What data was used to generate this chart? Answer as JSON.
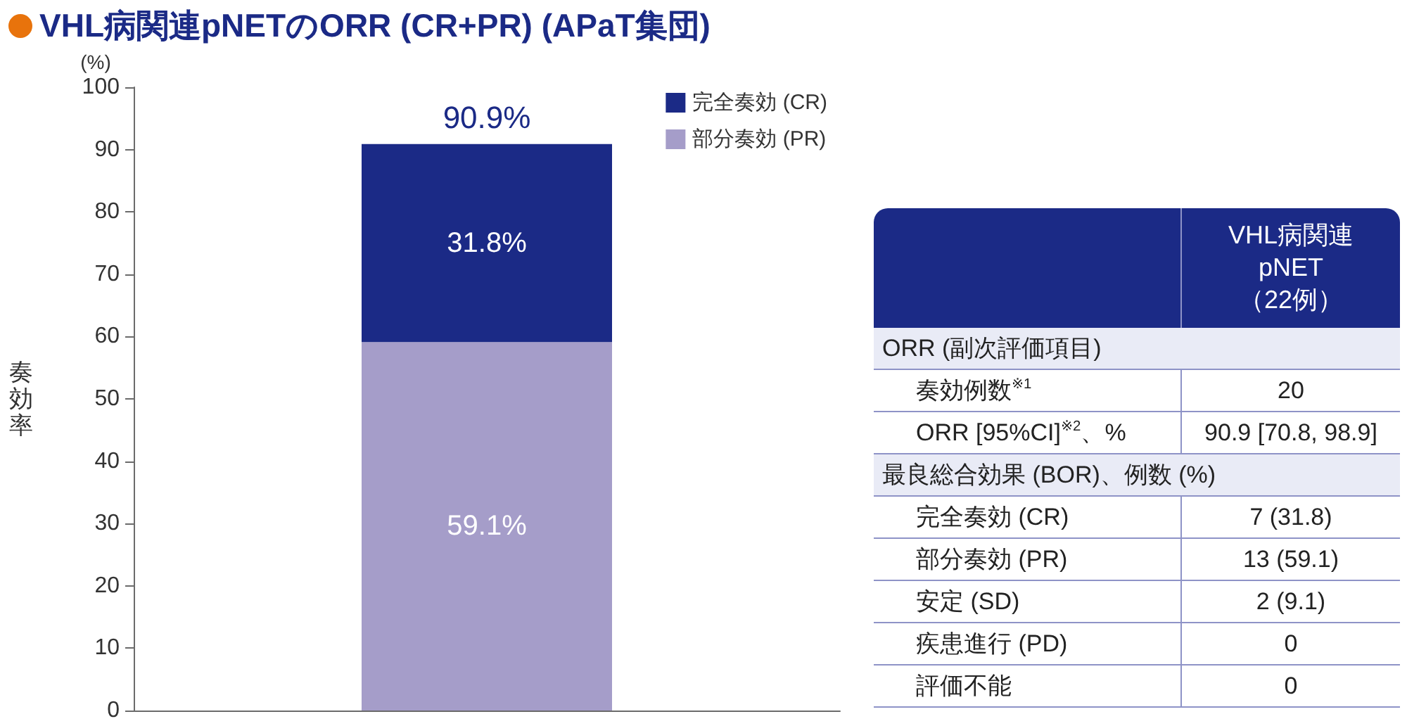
{
  "chart_data": [
    {
      "type": "bar",
      "title": "VHL病関連pNETのORR (CR+PR) (APaT集団)",
      "ylabel": "奏効率",
      "annotations": [
        "(%)"
      ],
      "categories": [
        null
      ],
      "stacked": true,
      "series": [
        {
          "name": "部分奏効 (PR)",
          "color": "#a59dc9",
          "values": [
            59.1
          ],
          "value_labels": [
            "59.1%"
          ]
        },
        {
          "name": "完全奏効 (CR)",
          "color": "#1b2a86",
          "values": [
            31.8
          ],
          "value_labels": [
            "31.8%"
          ]
        }
      ],
      "totals": [
        "90.9%"
      ],
      "ylim": [
        0,
        100
      ],
      "yticks": [
        0,
        10,
        20,
        30,
        40,
        50,
        60,
        70,
        80,
        90,
        100
      ],
      "legend": "top right"
    },
    {
      "type": "other",
      "categories": [
        "VHL病関連\npNET\n（22例）"
      ],
      "y_categories": [
        "ORR (副次評価項目)",
        "奏効例数$^{※1}$",
        "ORR [95%CI]$^{※2}$、%",
        "最良総合効果 (BOR)、例数 (%)",
        "完全奏効 (CR)",
        "部分奏効 (PR)",
        "安定 (SD)",
        "疾患進行 (PD)",
        "評価不能"
      ],
      "cell_labels": [
        [
          null
        ],
        [
          "20"
        ],
        [
          "90.9 [70.8, 98.9]"
        ],
        [
          null
        ],
        [
          "7 (31.8)"
        ],
        [
          "13 (59.1)"
        ],
        [
          "2 (9.1)"
        ],
        [
          "0"
        ],
        [
          "0"
        ]
      ]
    }
  ]
}
